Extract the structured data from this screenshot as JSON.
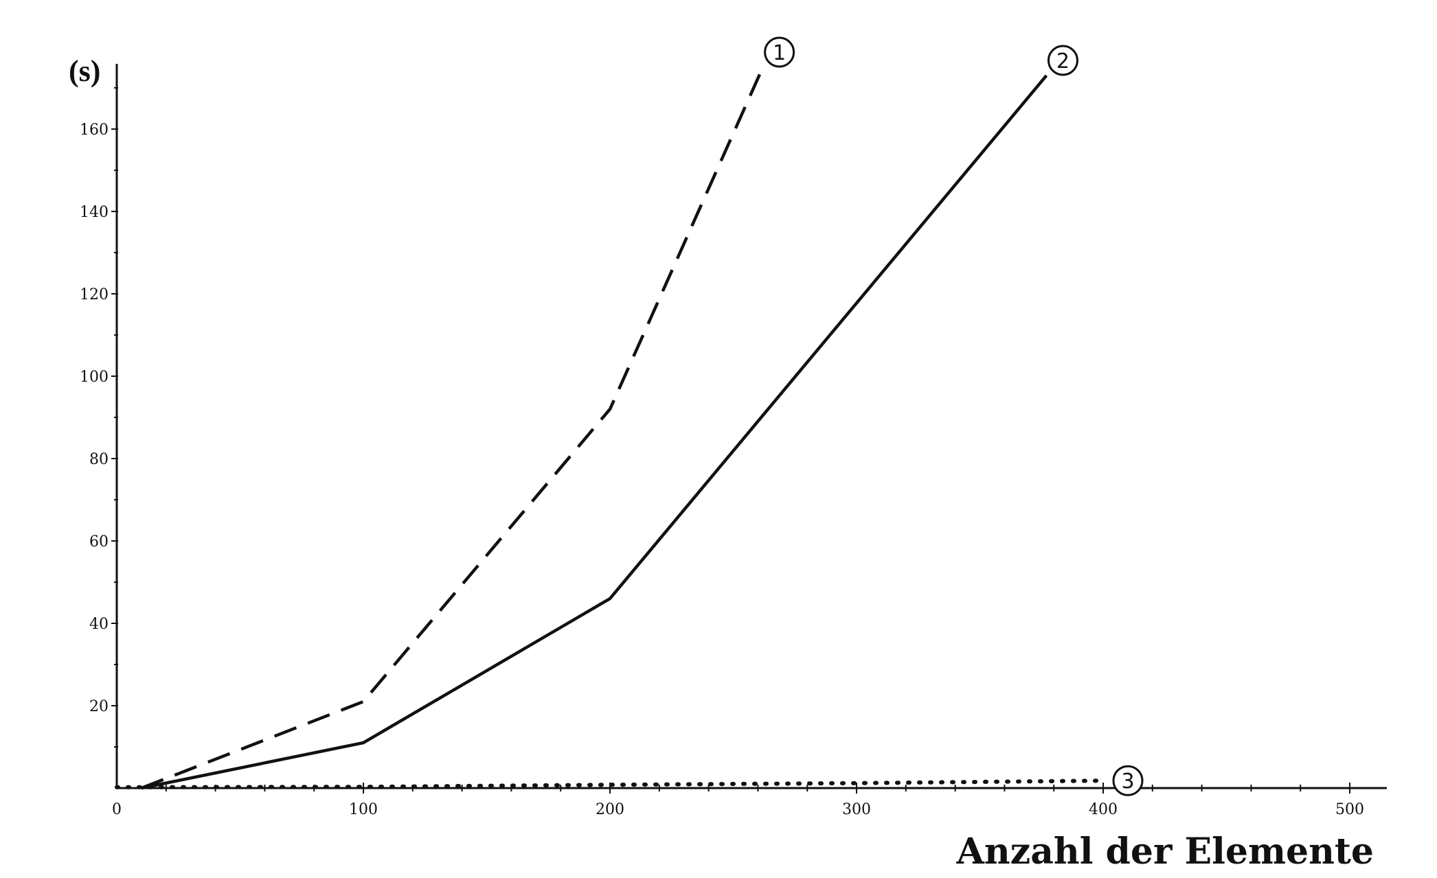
{
  "chart_data": {
    "type": "line",
    "title": "",
    "xlabel": "Anzahl der Elemente",
    "ylabel": "(s)",
    "xlim": [
      0,
      515
    ],
    "ylim": [
      0,
      175
    ],
    "x_ticks": [
      0,
      100,
      200,
      300,
      400,
      500
    ],
    "y_ticks": [
      20,
      40,
      60,
      80,
      100,
      120,
      140,
      160
    ],
    "grid": false,
    "legend": "none",
    "series": [
      {
        "name": "1",
        "marker": "①",
        "style": "dashed",
        "x": [
          10,
          100,
          200,
          262
        ],
        "y": [
          0,
          21,
          92,
          175
        ]
      },
      {
        "name": "2",
        "marker": "②",
        "style": "solid",
        "x": [
          10,
          100,
          200,
          377
        ],
        "y": [
          0,
          11,
          46,
          173
        ]
      },
      {
        "name": "3",
        "marker": "③",
        "style": "dotted",
        "x": [
          0,
          100,
          200,
          300,
          400
        ],
        "y": [
          0.2,
          0.3,
          0.8,
          1.2,
          1.8
        ]
      }
    ]
  }
}
